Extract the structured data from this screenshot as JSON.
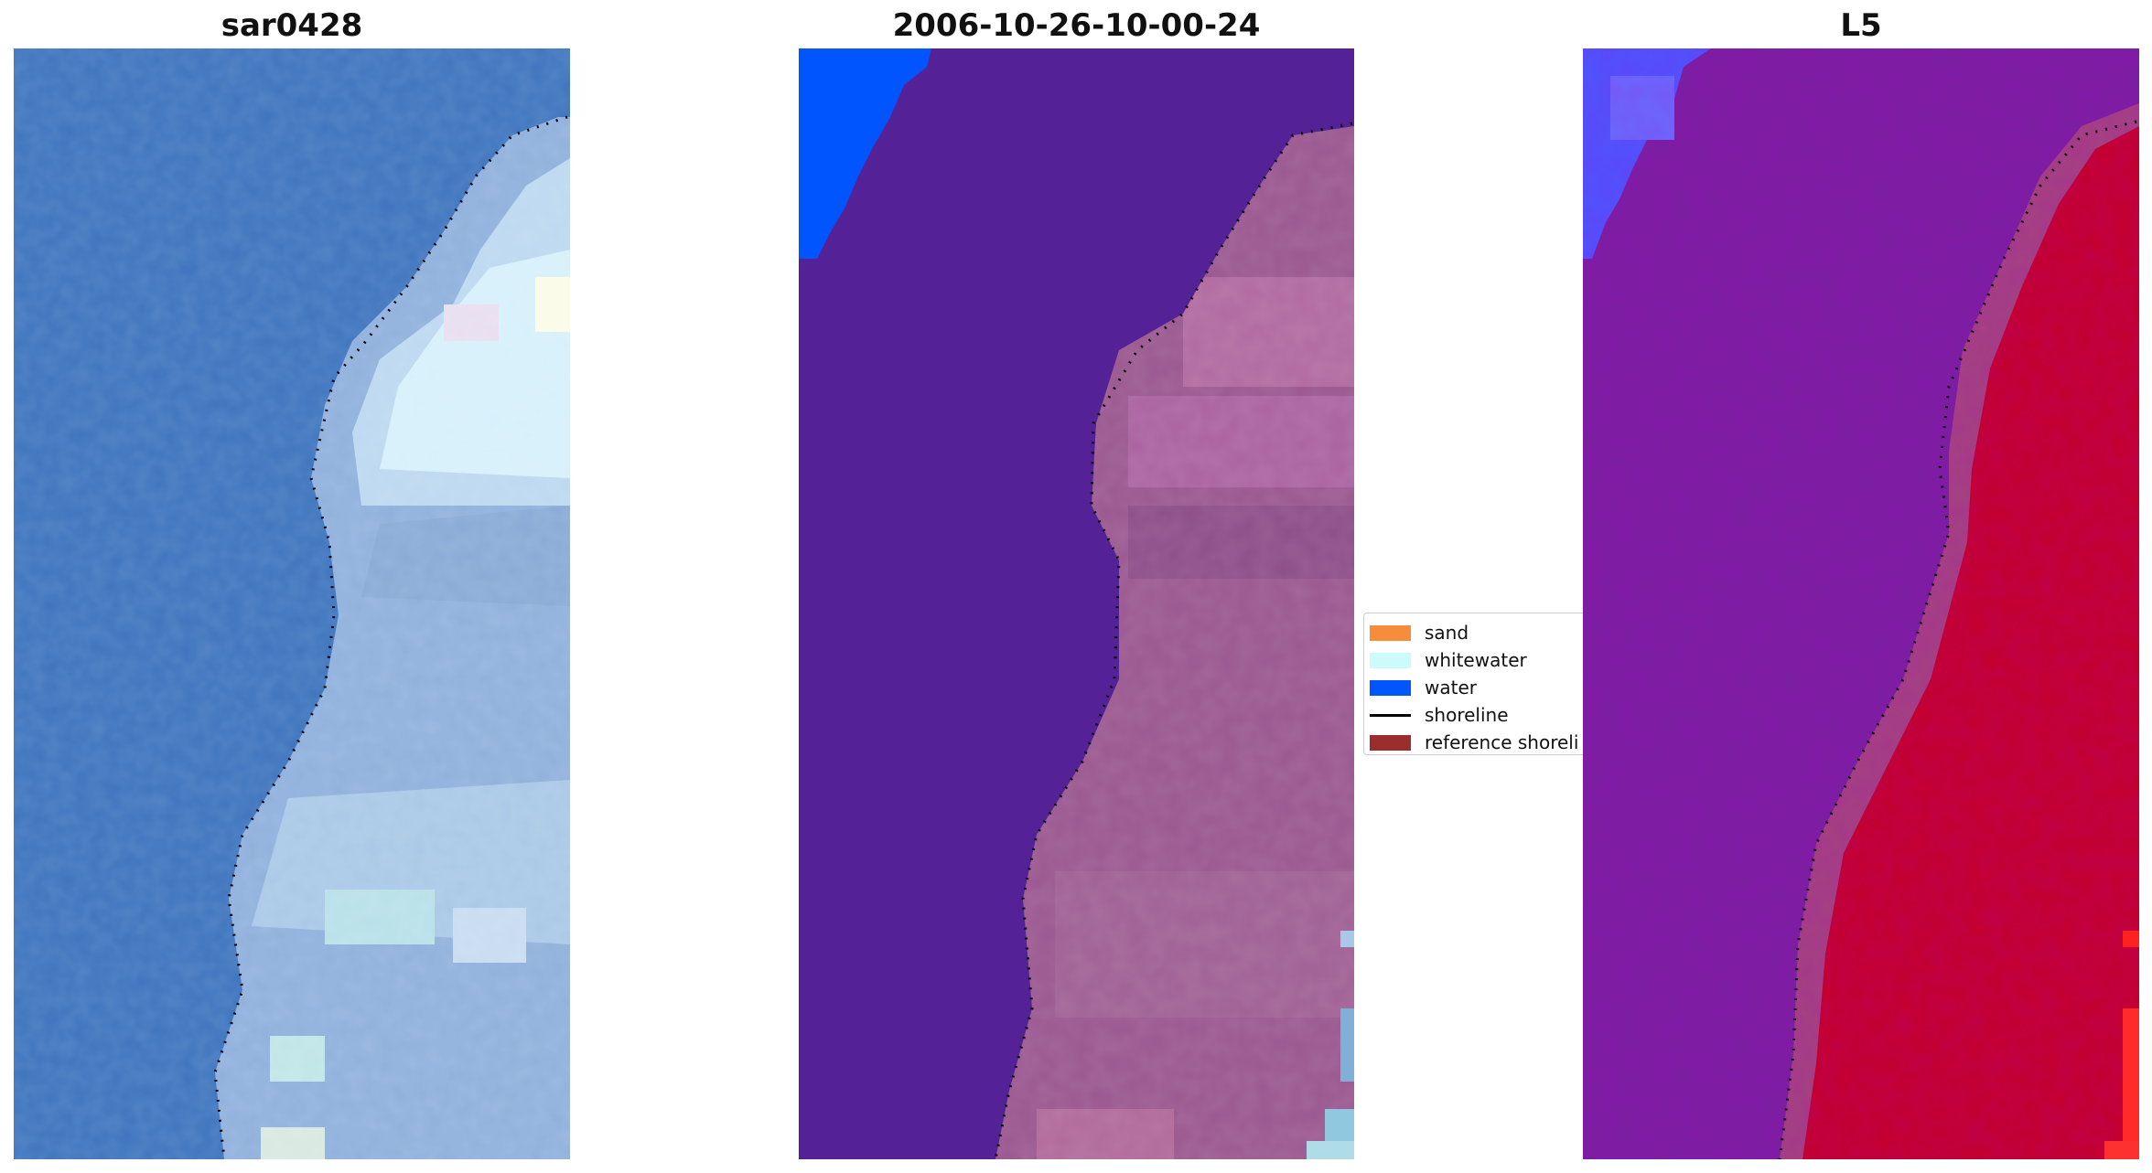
{
  "panels": [
    {
      "title": "sar0428",
      "kind": "rgb"
    },
    {
      "title": "2006-10-26-10-00-24",
      "kind": "classified"
    },
    {
      "title": "L5",
      "kind": "index"
    }
  ],
  "legend": {
    "items": [
      {
        "label": "sand",
        "type": "patch",
        "color": "#f58d3c"
      },
      {
        "label": "whitewater",
        "type": "patch",
        "color": "#ccfbfb"
      },
      {
        "label": "water",
        "type": "patch",
        "color": "#0055ff"
      },
      {
        "label": "shoreline",
        "type": "line",
        "color": "#000000"
      },
      {
        "label": "reference shoreli",
        "type": "patch",
        "color": "#9b2d2d"
      }
    ]
  },
  "colors": {
    "rgb_water": "#3d74be",
    "rgb_land": "#9ab8e0",
    "classified_water_mask": "#542296",
    "classified_land": "#a05a8f",
    "classified_water_corner": "#0055ff",
    "index_water": "#7a1fa0",
    "index_land": "#c4002b",
    "index_corner": "#4d55ff"
  }
}
